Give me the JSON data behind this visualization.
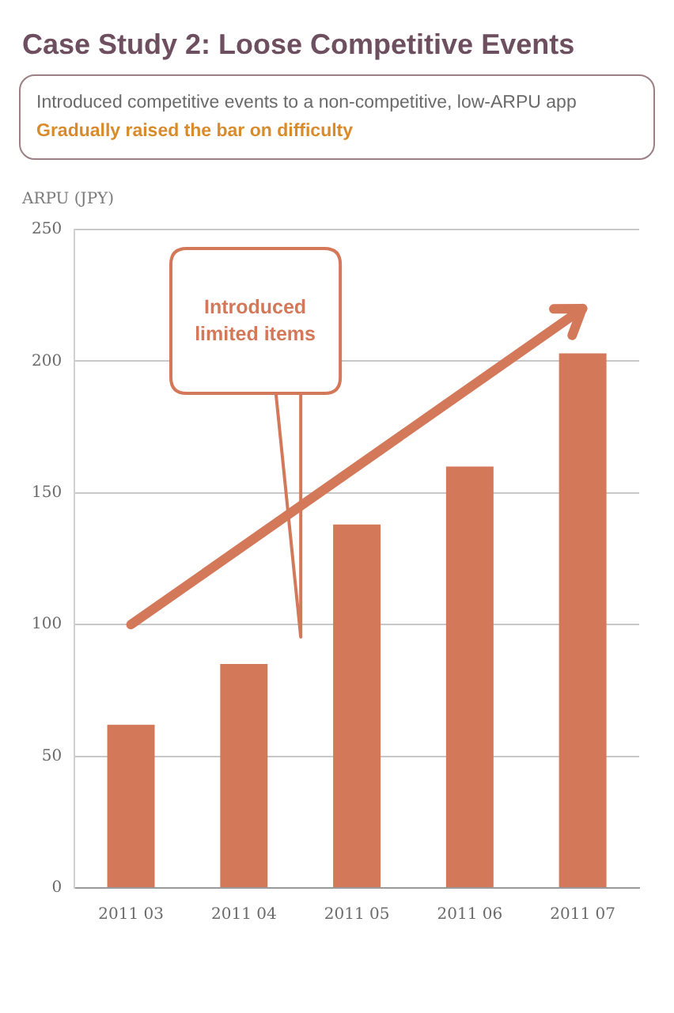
{
  "chart_data": {
    "type": "bar",
    "title": "Case Study 2: Loose Competitive Events",
    "subtitle": "Introduced competitive events to a non-competitive, low-ARPU app\nGradually raised the bar on difficulty",
    "ylabel": "ARPU (JPY)",
    "categories": [
      "2011 03",
      "2011 04",
      "2011 05",
      "2011 06",
      "2011 07"
    ],
    "series": [
      {
        "color": "#d4785a",
        "values": [
          62,
          85,
          138,
          160,
          203
        ]
      },
      {
        "type": "line",
        "color": "#d4785a",
        "x": [
          "2011 03",
          "2011 07"
        ],
        "values": [
          100,
          220
        ]
      }
    ],
    "ylim": [
      0,
      250
    ],
    "yticks": [
      0,
      50,
      100,
      150,
      200,
      250
    ],
    "grid": "y",
    "legend": false,
    "annotations": [
      "Introduced limited items"
    ]
  }
}
